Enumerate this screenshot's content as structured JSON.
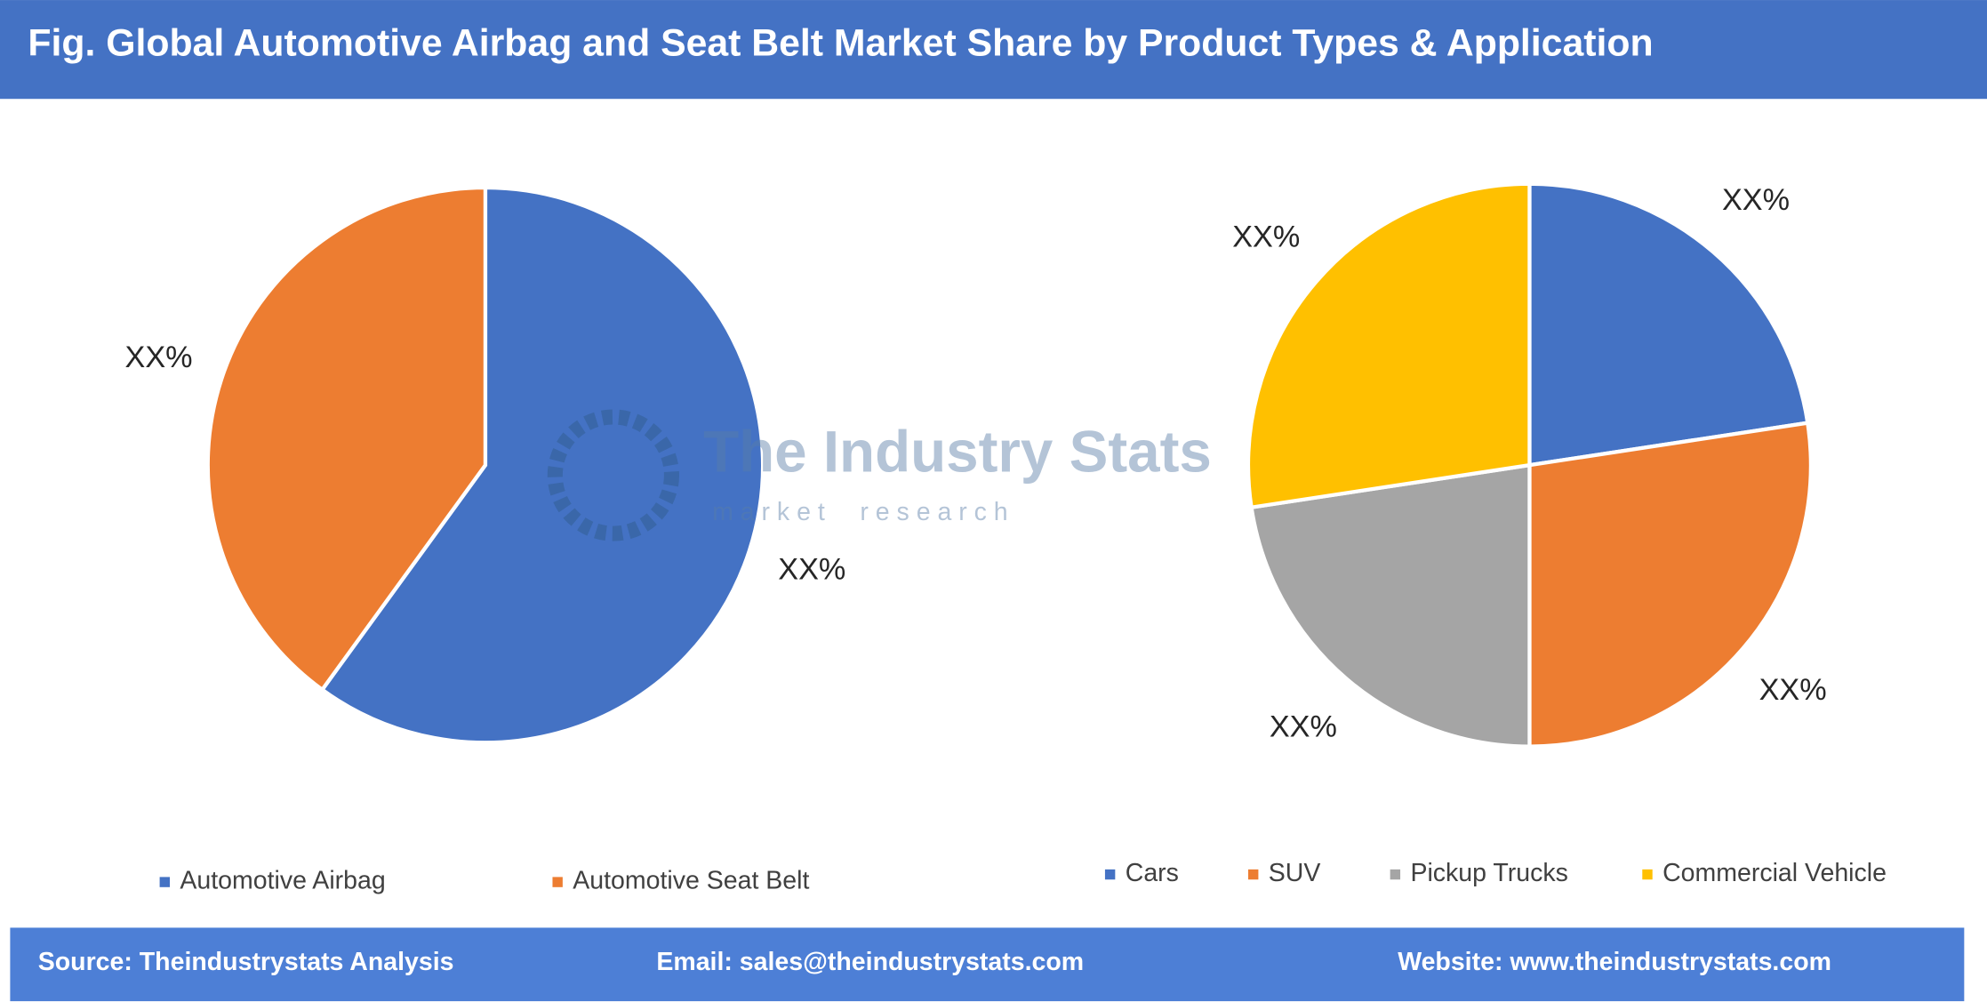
{
  "title": "Fig. Global Automotive Airbag and Seat Belt Market Share by Product Types & Application",
  "watermark": {
    "name": "The Industry Stats",
    "tagline": "m a r k e t     r e s e a r c h"
  },
  "footer": {
    "source": "Source: Theindustrystats Analysis",
    "email": "Email: sales@theindustrystats.com",
    "website": "Website: www.theindustrystats.com"
  },
  "chart_data": [
    {
      "type": "pie",
      "categories": [
        "Automotive Airbag",
        "Automotive Seat Belt"
      ],
      "values": [
        60,
        40
      ],
      "value_labels": [
        "XX%",
        "XX%"
      ],
      "colors": [
        "#4472c4",
        "#ed7d31"
      ]
    },
    {
      "type": "pie",
      "categories": [
        "Cars",
        "SUV",
        "Pickup Trucks",
        "Commercial Vehicle"
      ],
      "values": [
        22.6,
        27.4,
        22.6,
        27.4
      ],
      "value_labels": [
        "XX%",
        "XX%",
        "XX%",
        "XX%"
      ],
      "colors": [
        "#4472c4",
        "#ed7d31",
        "#a5a5a5",
        "#ffc000"
      ]
    }
  ]
}
